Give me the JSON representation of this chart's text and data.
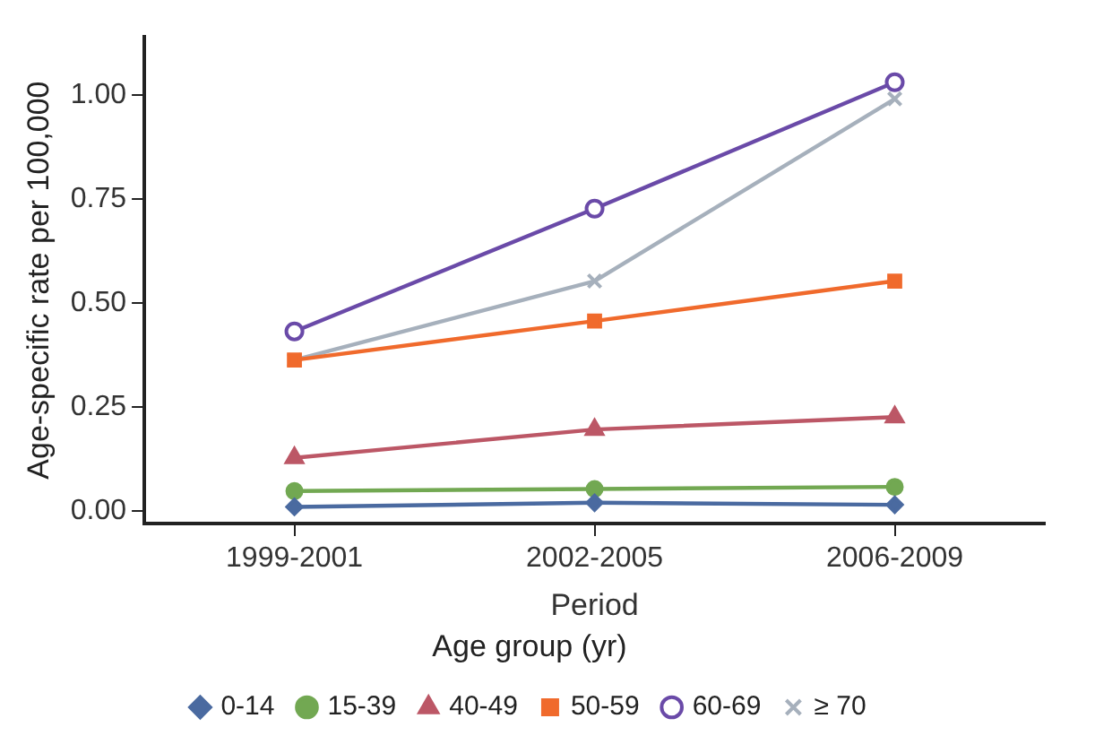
{
  "chart_data": {
    "type": "line",
    "xlabel": "Period",
    "ylabel": "Age-specific rate per 100,000",
    "legend_title": "Age group (yr)",
    "legend": "bottom",
    "grid": false,
    "categories": [
      "1999-2001",
      "2002-2005",
      "2006-2009"
    ],
    "ylim": [
      -0.03,
      1.14
    ],
    "yticks": [
      {
        "value": 0,
        "label": "0.00"
      },
      {
        "value": 0.25,
        "label": "0.25"
      },
      {
        "value": 0.5,
        "label": "0.50"
      },
      {
        "value": 0.75,
        "label": "0.75"
      },
      {
        "value": 1,
        "label": "1.00"
      }
    ],
    "series": [
      {
        "name": "0-14",
        "color": "#4a6aa0",
        "marker": "diamond",
        "values": [
          0.01,
          0.02,
          0.015
        ]
      },
      {
        "name": "15-39",
        "color": "#72a852",
        "marker": "circle",
        "values": [
          0.048,
          0.053,
          0.058
        ]
      },
      {
        "name": "40-49",
        "color": "#bc5766",
        "marker": "triangle",
        "values": [
          0.128,
          0.196,
          0.226
        ]
      },
      {
        "name": "50-59",
        "color": "#f06a2c",
        "marker": "square",
        "values": [
          0.363,
          0.457,
          0.553
        ]
      },
      {
        "name": "60-69",
        "color": "#6a4aa8",
        "marker": "open-circle",
        "values": [
          0.432,
          0.727,
          1.031
        ]
      },
      {
        "name": "≥ 70",
        "color": "#a6b0bc",
        "marker": "cross",
        "values": [
          0.363,
          0.553,
          0.991
        ]
      }
    ]
  }
}
